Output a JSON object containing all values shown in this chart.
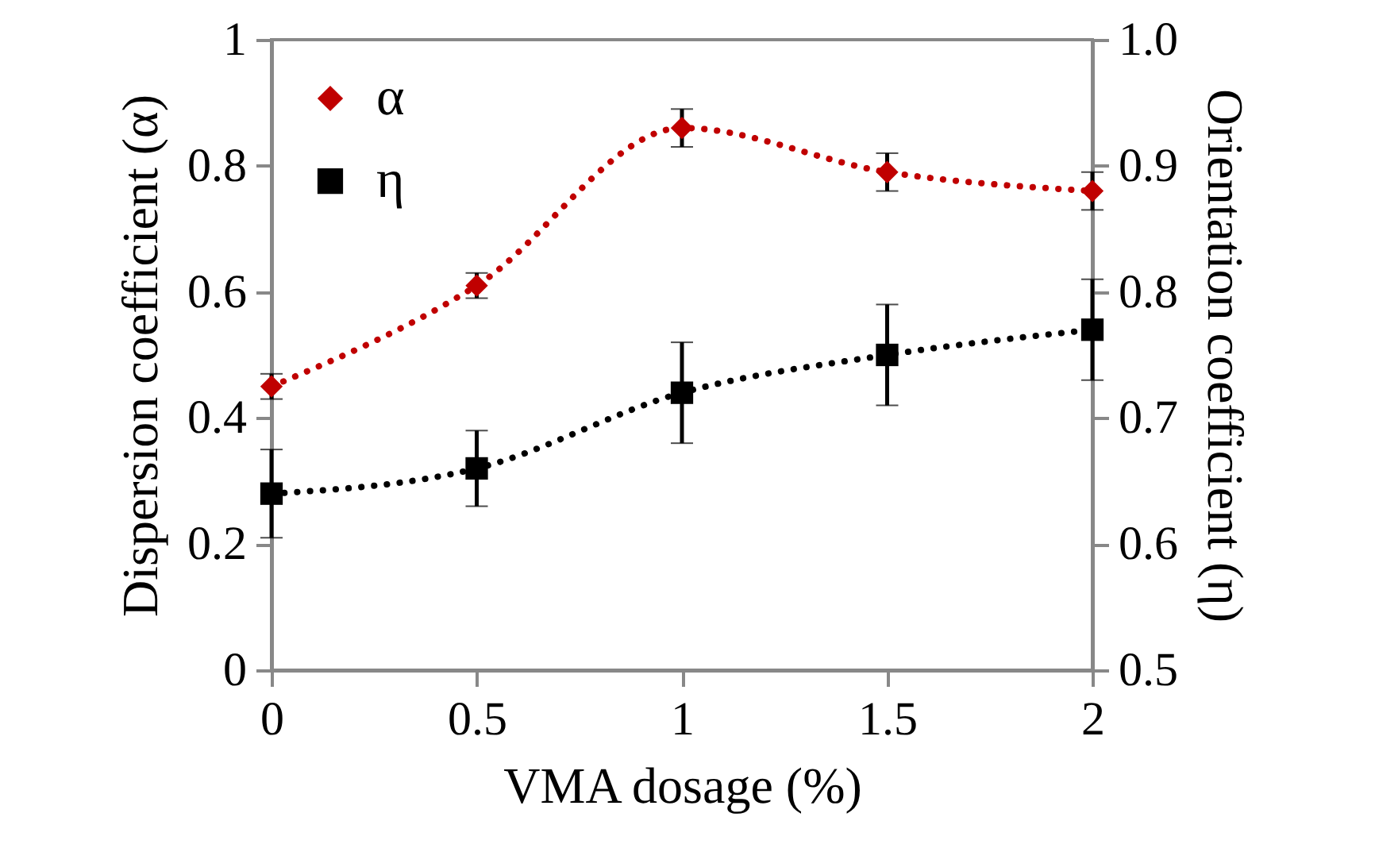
{
  "chart_data": {
    "type": "line",
    "xlabel": "VMA dosage (%)",
    "ylabel": "Dispersion coefficient (α)",
    "y2label": "Orientation coefficient (η)",
    "x": [
      0,
      0.5,
      1,
      1.5,
      2
    ],
    "series": [
      {
        "name": "α",
        "color": "#c00000",
        "marker": "diamond",
        "values": [
          0.45,
          0.61,
          0.86,
          0.79,
          0.76
        ],
        "errors": [
          0.02,
          0.02,
          0.03,
          0.03,
          0.03
        ]
      },
      {
        "name": "η",
        "color": "#000000",
        "marker": "square",
        "axis": "y2",
        "values": [
          0.64,
          0.66,
          0.72,
          0.75,
          0.77
        ],
        "errors": [
          0.035,
          0.03,
          0.04,
          0.04,
          0.04
        ]
      }
    ],
    "xlim": [
      0,
      2
    ],
    "xticks": [
      0,
      0.5,
      1,
      1.5,
      2
    ],
    "ylim": [
      0,
      1
    ],
    "yticks": [
      0,
      0.2,
      0.4,
      0.6,
      0.8,
      1
    ],
    "y2lim": [
      0.5,
      1
    ],
    "y2ticks": [
      0.5,
      0.6,
      0.7,
      0.8,
      0.9,
      {
        "value": 1,
        "label": "1.0"
      }
    ],
    "grid": false,
    "legend": "top left",
    "line_style": "dotted"
  }
}
